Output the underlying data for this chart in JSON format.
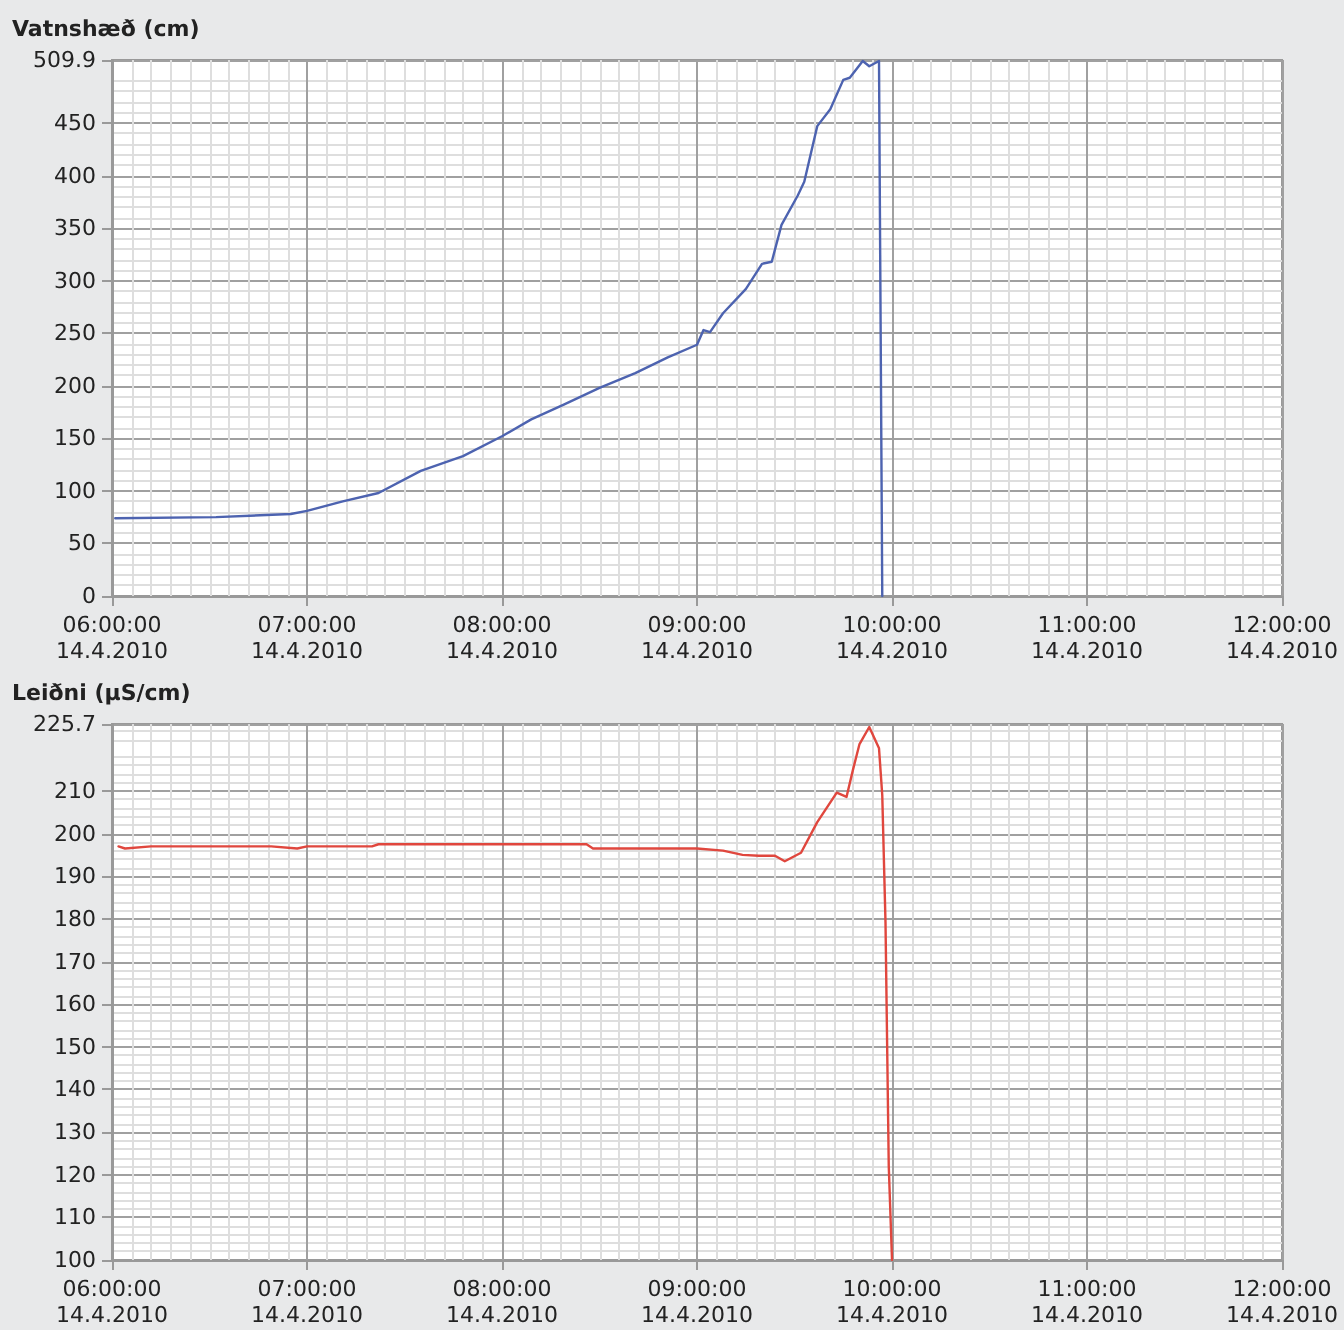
{
  "chart_data": [
    {
      "type": "line",
      "ylabel": "Vatnshæð (cm)",
      "grid": true,
      "marker": "none",
      "line_style": "solid",
      "xlim": [
        "2010-04-14T06:00",
        "2010-04-14T12:00"
      ],
      "xticks": [
        {
          "value": "2010-04-14T06:00",
          "label": "06:00:00\n14.4.2010"
        },
        {
          "value": "2010-04-14T07:00",
          "label": "07:00:00\n14.4.2010"
        },
        {
          "value": "2010-04-14T08:00",
          "label": "08:00:00\n14.4.2010"
        },
        {
          "value": "2010-04-14T09:00",
          "label": "09:00:00\n14.4.2010"
        },
        {
          "value": "2010-04-14T10:00",
          "label": "10:00:00\n14.4.2010"
        },
        {
          "value": "2010-04-14T11:00",
          "label": "11:00:00\n14.4.2010"
        },
        {
          "value": "2010-04-14T12:00",
          "label": "12:00:00\n14.4.2010"
        }
      ],
      "ylim": [
        0,
        509.9
      ],
      "yticks": [
        0,
        50,
        100,
        150,
        200,
        250,
        300,
        350,
        400,
        450,
        509.9
      ],
      "x": [
        "2010-04-14T06:01",
        "2010-04-14T06:32",
        "2010-04-14T06:55",
        "2010-04-14T07:00",
        "2010-04-14T07:11",
        "2010-04-14T07:22",
        "2010-04-14T07:35",
        "2010-04-14T07:48",
        "2010-04-14T08:00",
        "2010-04-14T08:09",
        "2010-04-14T08:19",
        "2010-04-14T08:30",
        "2010-04-14T08:41",
        "2010-04-14T08:51",
        "2010-04-14T09:00",
        "2010-04-14T09:02",
        "2010-04-14T09:04",
        "2010-04-14T09:08",
        "2010-04-14T09:15",
        "2010-04-14T09:20",
        "2010-04-14T09:23",
        "2010-04-14T09:26",
        "2010-04-14T09:31",
        "2010-04-14T09:33",
        "2010-04-14T09:37",
        "2010-04-14T09:41",
        "2010-04-14T09:45",
        "2010-04-14T09:47",
        "2010-04-14T09:51",
        "2010-04-14T09:53",
        "2010-04-14T09:56",
        "2010-04-14T09:57"
      ],
      "series": [
        {
          "color": "#4d63b0",
          "values": [
            74,
            75,
            78,
            81,
            90,
            98,
            119,
            133,
            152,
            168,
            182,
            198,
            212,
            227,
            239,
            253,
            251,
            269,
            292,
            316,
            318,
            353,
            381,
            394,
            447,
            463,
            491,
            493,
            509,
            504,
            509,
            0
          ]
        }
      ]
    },
    {
      "type": "line",
      "ylabel": "Leiðni (µS/cm)",
      "grid": true,
      "marker": "none",
      "line_style": "solid",
      "xlim": [
        "2010-04-14T06:00",
        "2010-04-14T12:00"
      ],
      "xticks": [
        {
          "value": "2010-04-14T06:00",
          "label": "06:00:00\n14.4.2010"
        },
        {
          "value": "2010-04-14T07:00",
          "label": "07:00:00\n14.4.2010"
        },
        {
          "value": "2010-04-14T08:00",
          "label": "08:00:00\n14.4.2010"
        },
        {
          "value": "2010-04-14T09:00",
          "label": "09:00:00\n14.4.2010"
        },
        {
          "value": "2010-04-14T10:00",
          "label": "10:00:00\n14.4.2010"
        },
        {
          "value": "2010-04-14T11:00",
          "label": "11:00:00\n14.4.2010"
        },
        {
          "value": "2010-04-14T12:00",
          "label": "12:00:00\n14.4.2010"
        }
      ],
      "ylim": [
        100,
        225.7
      ],
      "yticks": [
        100,
        110,
        120,
        130,
        140,
        150,
        160,
        170,
        180,
        190,
        200,
        210,
        225.7
      ],
      "x": [
        "2010-04-14T06:02",
        "2010-04-14T06:04",
        "2010-04-14T06:12",
        "2010-04-14T06:30",
        "2010-04-14T06:49",
        "2010-04-14T06:57",
        "2010-04-14T07:00",
        "2010-04-14T07:20",
        "2010-04-14T07:22",
        "2010-04-14T08:26",
        "2010-04-14T08:28",
        "2010-04-14T09:00",
        "2010-04-14T09:08",
        "2010-04-14T09:14",
        "2010-04-14T09:19",
        "2010-04-14T09:24",
        "2010-04-14T09:27",
        "2010-04-14T09:32",
        "2010-04-14T09:37",
        "2010-04-14T09:43",
        "2010-04-14T09:46",
        "2010-04-14T09:48",
        "2010-04-14T09:50",
        "2010-04-14T09:53",
        "2010-04-14T09:56",
        "2010-04-14T09:57",
        "2010-04-14T09:58",
        "2010-04-14T09:59",
        "2010-04-14T10:00"
      ],
      "series": [
        {
          "color": "#e0473e",
          "values": [
            197,
            196.5,
            197,
            197,
            197,
            196.5,
            197,
            197,
            197.5,
            197.5,
            196.5,
            196.5,
            196,
            195,
            194.8,
            194.8,
            193.5,
            195.5,
            202.7,
            209.6,
            208.6,
            215,
            221,
            225,
            220,
            209,
            179,
            122,
            100
          ]
        }
      ]
    }
  ]
}
